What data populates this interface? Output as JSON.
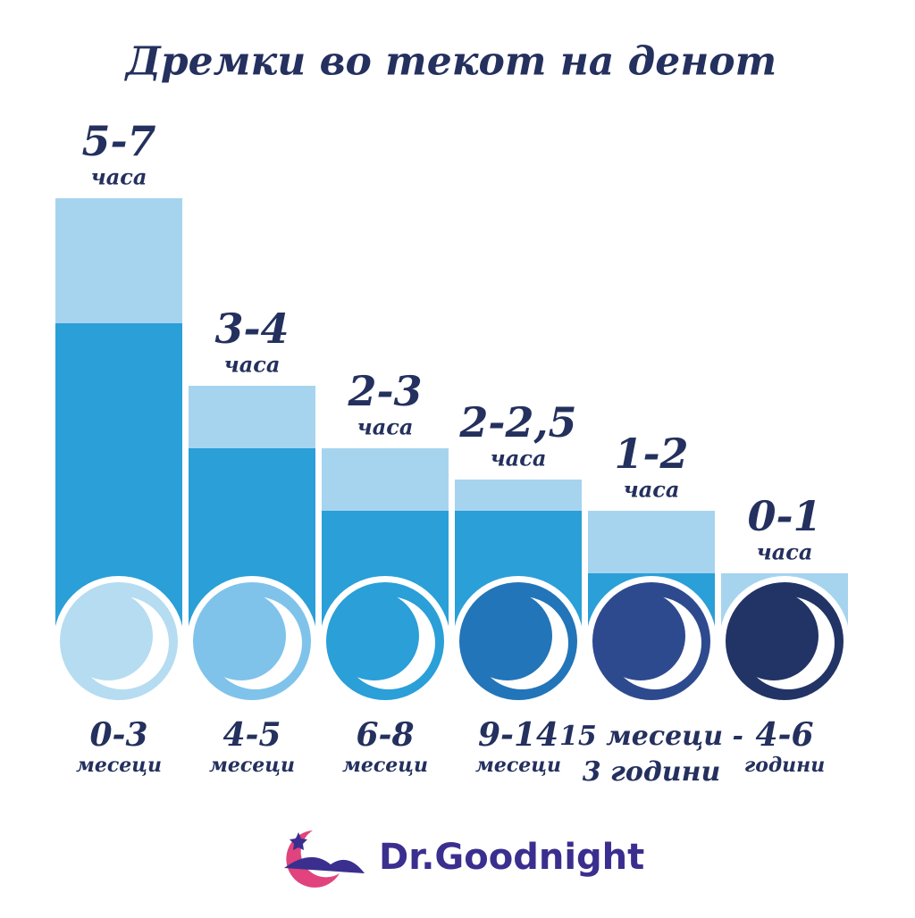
{
  "chart_data": {
    "type": "range-bar",
    "title": "Дремки во текот на денот",
    "categories": [
      [
        "0-3",
        "месеци"
      ],
      [
        "4-5",
        "месеци"
      ],
      [
        "6-8",
        "месеци"
      ],
      [
        "9-14",
        "месеци"
      ],
      [
        "15 месеци -",
        "3 години"
      ],
      [
        "4-6",
        "години"
      ]
    ],
    "series": [
      {
        "color": "#2a9fd8",
        "values": [
          5,
          3,
          2,
          2,
          1,
          0
        ]
      },
      {
        "color": "#a6d4ef",
        "values": [
          7,
          4,
          3,
          2.5,
          2,
          1
        ]
      }
    ],
    "value_labels": [
      [
        "5-7",
        "часа"
      ],
      [
        "3-4",
        "часа"
      ],
      [
        "2-3",
        "часа"
      ],
      [
        "2-2,5",
        "часа"
      ],
      [
        "1-2",
        "часа"
      ],
      [
        "0-1",
        "часа"
      ]
    ],
    "icon_colors": [
      "#b5dcf1",
      "#7fc3ea",
      "#2a9fd8",
      "#2275b8",
      "#2e4a8f",
      "#223466"
    ]
  },
  "logo": {
    "text": "Dr.Goodnight"
  }
}
